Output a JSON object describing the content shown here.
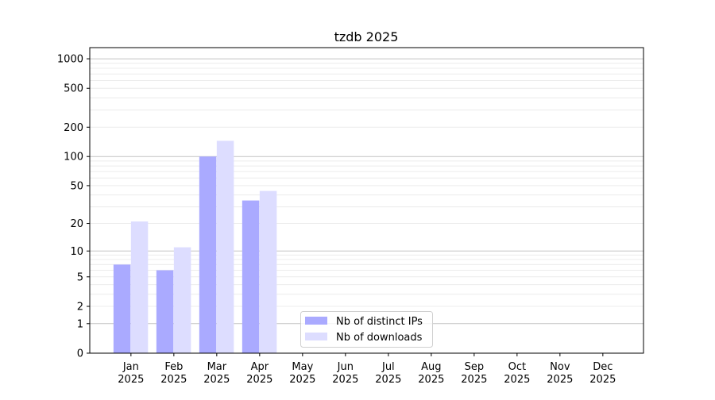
{
  "chart_data": {
    "type": "bar",
    "title": "tzdb 2025",
    "xlabel": "",
    "ylabel": "",
    "yscale": "log(1+y)",
    "ylim": [
      0,
      1300
    ],
    "yticks": [
      0,
      1,
      2,
      5,
      10,
      20,
      50,
      100,
      200,
      500,
      1000
    ],
    "grid": true,
    "legend_position": "bottom-center",
    "categories": [
      "Jan\n2025",
      "Feb\n2025",
      "Mar\n2025",
      "Apr\n2025",
      "May\n2025",
      "Jun\n2025",
      "Jul\n2025",
      "Aug\n2025",
      "Sep\n2025",
      "Oct\n2025",
      "Nov\n2025",
      "Dec\n2025"
    ],
    "series": [
      {
        "name": "Nb of distinct IPs",
        "color": "#aaaaff",
        "values": [
          7,
          6,
          100,
          35,
          null,
          null,
          null,
          null,
          null,
          null,
          null,
          null
        ]
      },
      {
        "name": "Nb of downloads",
        "color": "#ddddff",
        "values": [
          21,
          11,
          145,
          44,
          null,
          null,
          null,
          null,
          null,
          null,
          null,
          null
        ]
      }
    ]
  }
}
